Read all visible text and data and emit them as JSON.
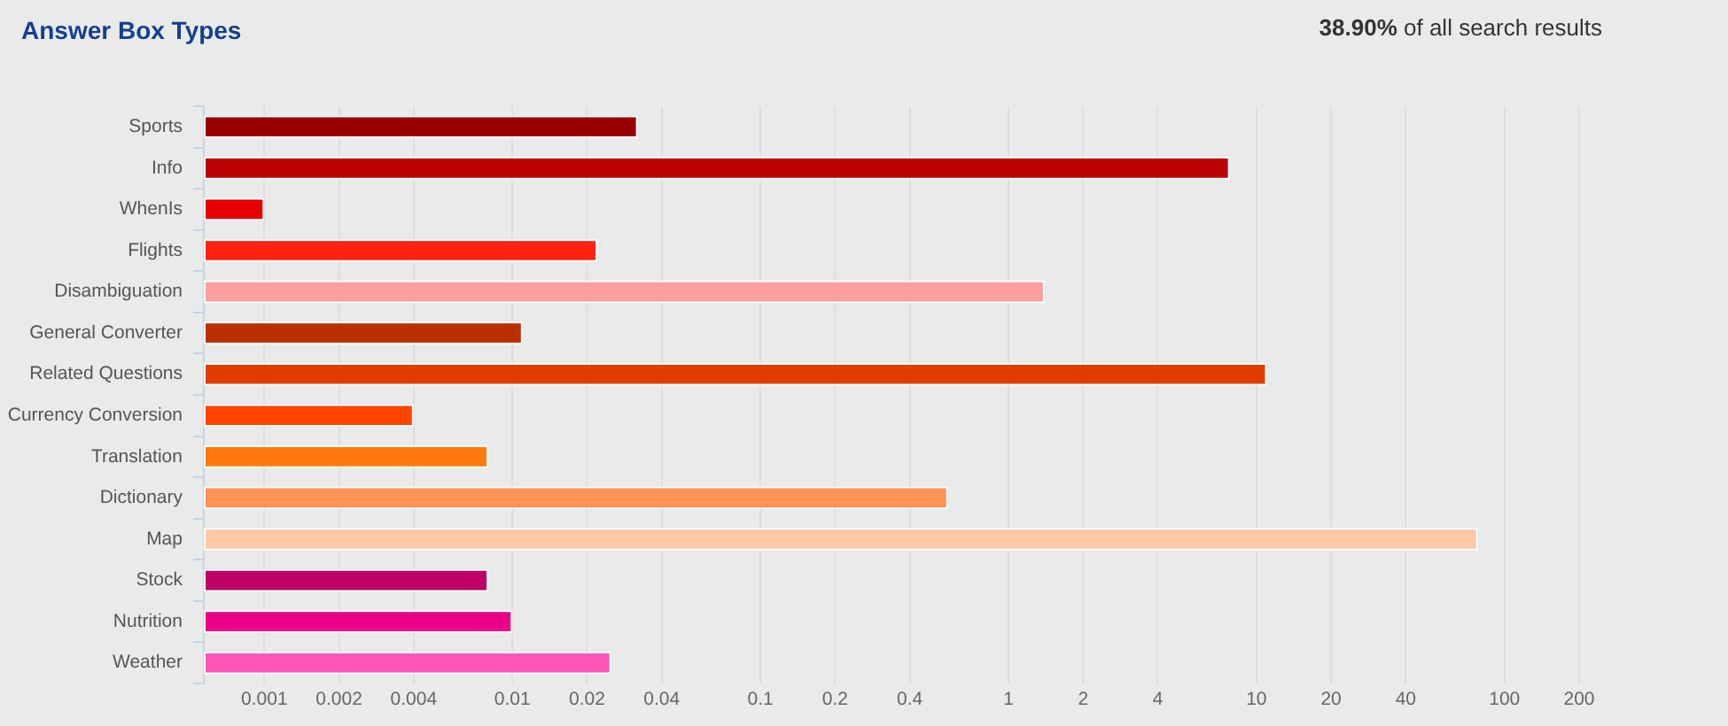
{
  "chart_data": {
    "type": "bar",
    "orientation": "horizontal",
    "title": "Answer Box Types",
    "subtitle": "38.90% of all search results",
    "categories": [
      "Sports",
      "Info",
      "WhenIs",
      "Flights",
      "Disambiguation",
      "General Converter",
      "Related Questions",
      "Currency Conversion",
      "Translation",
      "Dictionary",
      "Map",
      "Stock",
      "Nutrition",
      "Weather"
    ],
    "values": [
      0.032,
      7.8,
      0.001,
      0.022,
      1.4,
      0.011,
      11,
      0.004,
      0.008,
      0.57,
      78,
      0.008,
      0.01,
      0.025
    ],
    "colors": [
      "#990000",
      "#bb0000",
      "#e60000",
      "#ff2211",
      "#ff9e9e",
      "#bb3000",
      "#e23d00",
      "#ff4400",
      "#ff7a10",
      "#ff9255",
      "#ffc8a8",
      "#bf0066",
      "#ec008a",
      "#ff55b8"
    ],
    "log": "x",
    "xlim": [
      0.00057,
      200
    ],
    "xticks": [
      0.001,
      0.002,
      0.004,
      0.01,
      0.02,
      0.04,
      0.1,
      0.2,
      0.4,
      1,
      2,
      4,
      10,
      20,
      40,
      100,
      200
    ],
    "grid": "x"
  }
}
